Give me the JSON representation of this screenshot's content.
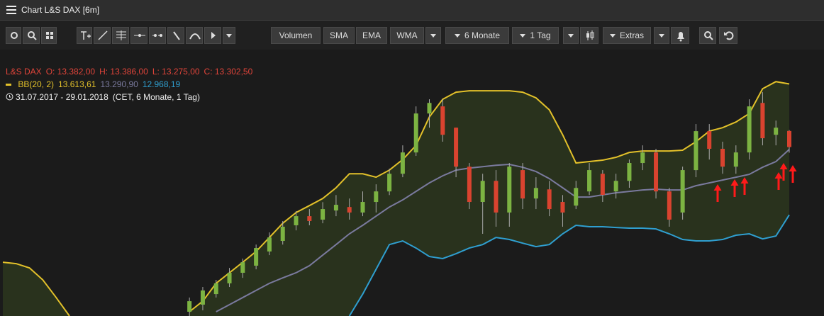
{
  "window": {
    "title": "Chart L&S DAX [6m]"
  },
  "toolbar": {
    "buttons": [
      "Volumen",
      "SMA",
      "EMA",
      "WMA"
    ],
    "dropdowns": [
      "6 Monate",
      "1 Tag",
      "Extras"
    ]
  },
  "legend": {
    "instrument": "L&S DAX",
    "ohlc": [
      "O: 13.382,00",
      "H: 13.386,00",
      "L: 13.275,00",
      "C: 13.302,50"
    ],
    "indicator": "BB(20, 2)",
    "indicator_values": [
      "13.613,61",
      "13.290,90",
      "12.968,19"
    ],
    "range": "31.07.2017 - 29.01.2018",
    "range_note": "(CET, 6 Monate, 1 Tag)"
  },
  "chart_data": {
    "type": "candlestick",
    "categories": [
      null,
      null,
      null,
      null,
      null,
      null,
      null,
      null,
      null,
      null,
      null,
      null,
      null,
      null,
      null,
      null,
      null,
      null,
      null,
      null,
      null,
      null,
      null,
      null,
      null,
      null,
      null,
      null,
      null,
      null,
      null,
      null,
      null,
      null,
      null,
      null,
      null,
      null,
      null,
      null,
      null,
      null,
      null,
      null,
      null,
      null,
      null,
      null,
      null,
      null,
      null,
      null,
      null,
      null,
      null,
      null,
      null,
      null,
      null,
      null
    ],
    "ylim": [
      12470,
      13720
    ],
    "up_color": "#7cb342",
    "down_color": "#d9432f",
    "open": [
      null,
      null,
      null,
      null,
      null,
      null,
      null,
      null,
      null,
      null,
      null,
      null,
      null,
      null,
      12491,
      12526,
      12578,
      12631,
      12683,
      12718,
      12788,
      12840,
      12917,
      12962,
      12945,
      12990,
      13007,
      12980,
      13032,
      13084,
      13171,
      13276,
      13468,
      13503,
      13398,
      13206,
      13032,
      13136,
      12980,
      13189,
      13049,
      13094,
      13032,
      13014,
      13084,
      13171,
      13084,
      13136,
      13224,
      13276,
      13084,
      12980,
      13189,
      13381,
      13294,
      13206,
      13276,
      13520,
      13363,
      13382
    ],
    "high": [
      null,
      null,
      null,
      null,
      null,
      null,
      null,
      null,
      null,
      null,
      null,
      null,
      null,
      null,
      12561,
      12613,
      12648,
      12707,
      12753,
      12822,
      12882,
      12938,
      12987,
      12997,
      13031,
      13066,
      13049,
      13084,
      13119,
      13196,
      13311,
      13503,
      13538,
      13538,
      13398,
      13224,
      13171,
      13189,
      13224,
      13224,
      13154,
      13136,
      13066,
      13136,
      13224,
      13189,
      13171,
      13241,
      13311,
      13294,
      13102,
      13206,
      13416,
      13416,
      13329,
      13311,
      13538,
      13573,
      13433,
      13386
    ],
    "low": [
      null,
      null,
      null,
      null,
      null,
      null,
      null,
      null,
      null,
      null,
      null,
      null,
      null,
      null,
      12470,
      12498,
      12561,
      12613,
      12658,
      12700,
      12770,
      12822,
      12892,
      12917,
      12927,
      12962,
      12945,
      12962,
      12980,
      13066,
      13154,
      13259,
      13398,
      13329,
      13154,
      12997,
      12875,
      12910,
      12910,
      12997,
      12997,
      12962,
      12910,
      12997,
      13066,
      13032,
      13049,
      13102,
      13189,
      13049,
      12910,
      12945,
      13154,
      13241,
      13171,
      13171,
      13241,
      13311,
      13311,
      13275
    ],
    "close": [
      null,
      null,
      null,
      null,
      null,
      null,
      null,
      null,
      null,
      null,
      null,
      null,
      null,
      null,
      12543,
      12596,
      12631,
      12683,
      12735,
      12805,
      12857,
      12910,
      12962,
      12938,
      12997,
      13018,
      12980,
      13032,
      13084,
      13171,
      13276,
      13468,
      13520,
      13363,
      13206,
      13032,
      13136,
      12980,
      13206,
      13049,
      13101,
      12997,
      12980,
      13101,
      13189,
      13067,
      13136,
      13224,
      13276,
      13084,
      12945,
      13189,
      13381,
      13294,
      13206,
      13276,
      13503,
      13346,
      13398,
      13302.5
    ],
    "bands": [
      {
        "color": "#e3c12a",
        "values": [
          12735,
          12728,
          12707,
          12648,
          12561,
          12470,
          null,
          null,
          null,
          null,
          null,
          null,
          null,
          null,
          12491,
          12543,
          12631,
          12683,
          12735,
          12788,
          12857,
          12927,
          12980,
          13014,
          13049,
          13102,
          13171,
          13171,
          13154,
          13189,
          13241,
          13311,
          13451,
          13538,
          13573,
          13580,
          13580,
          13580,
          13580,
          13573,
          13545,
          13486,
          13363,
          13224,
          13231,
          13238,
          13252,
          13276,
          13283,
          13283,
          13283,
          13287,
          13329,
          13381,
          13398,
          13426,
          13468,
          13590,
          13625,
          13613.61
        ]
      },
      {
        "color": "#7a7a9e",
        "values": [
          null,
          null,
          null,
          null,
          null,
          null,
          null,
          null,
          null,
          null,
          null,
          null,
          null,
          null,
          null,
          null,
          12491,
          12526,
          12561,
          12596,
          12631,
          12658,
          12683,
          12718,
          12770,
          12822,
          12875,
          12917,
          12962,
          13007,
          13042,
          13084,
          13126,
          13161,
          13189,
          13199,
          13206,
          13213,
          13217,
          13203,
          13182,
          13147,
          13102,
          13056,
          13056,
          13067,
          13077,
          13084,
          13091,
          13095,
          13091,
          13091,
          13112,
          13126,
          13140,
          13154,
          13168,
          13203,
          13231,
          13290.9
        ]
      },
      {
        "color": "#2f9fd0",
        "values": [
          null,
          null,
          null,
          null,
          null,
          null,
          null,
          null,
          null,
          null,
          null,
          null,
          null,
          null,
          null,
          null,
          null,
          null,
          null,
          null,
          null,
          null,
          null,
          null,
          null,
          null,
          12470,
          12578,
          12700,
          12822,
          12840,
          12805,
          12763,
          12753,
          12777,
          12805,
          12822,
          12857,
          12847,
          12829,
          12812,
          12822,
          12875,
          12917,
          12910,
          12910,
          12906,
          12903,
          12903,
          12899,
          12875,
          12847,
          12840,
          12840,
          12847,
          12868,
          12875,
          12850,
          12864,
          12968.19
        ]
      }
    ],
    "band_fill": "rgba(70,95,35,0.35)"
  }
}
